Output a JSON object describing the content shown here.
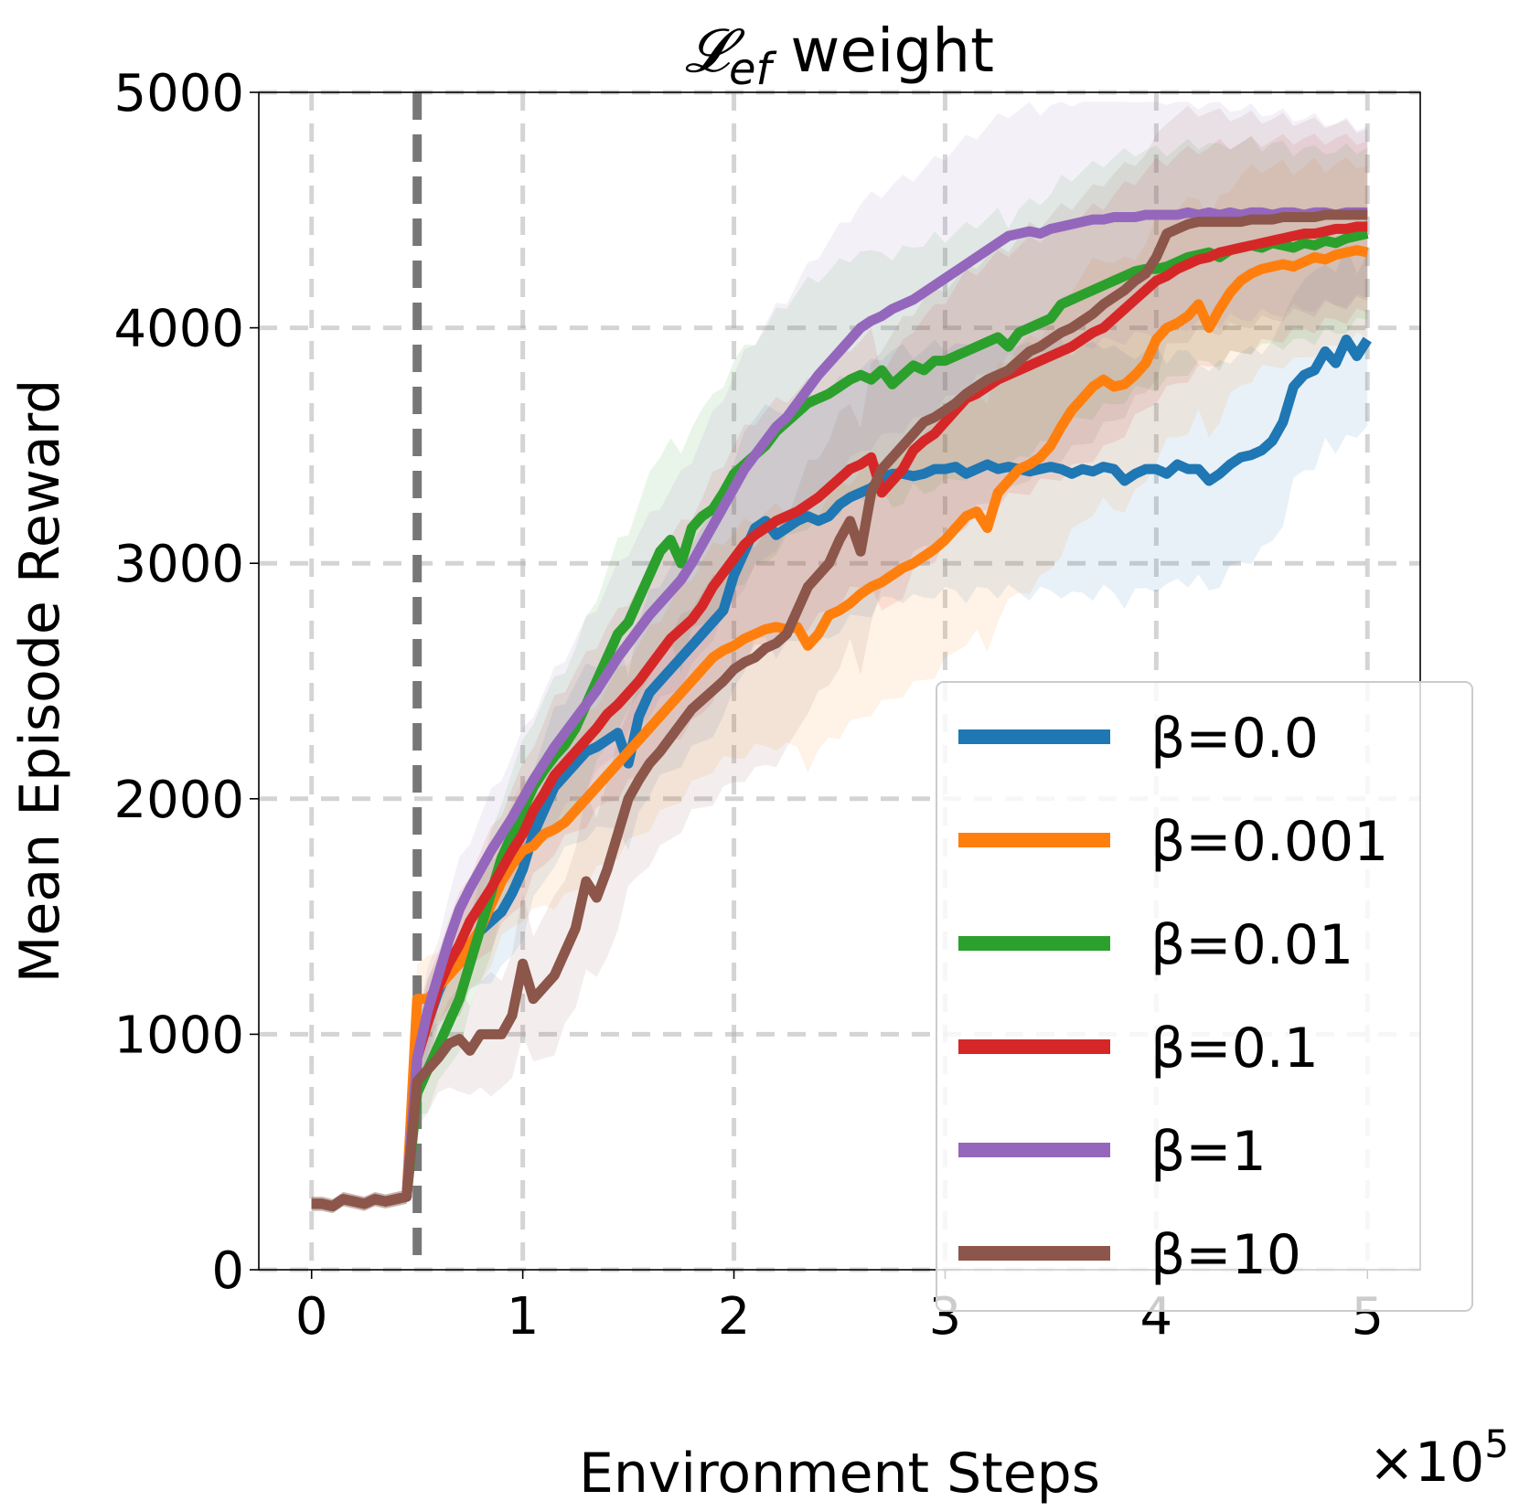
{
  "chart_data": {
    "type": "line",
    "title": "𝓛ef weight",
    "title_symbol": "𝓛",
    "title_subscript": "ef",
    "title_suffix": " weight",
    "xlabel": "Environment Steps",
    "x_multiplier_label": "×10",
    "x_multiplier_exp": "5",
    "ylabel": "Mean Episode Reward",
    "xlim": [
      -0.25,
      5.25
    ],
    "ylim": [
      0,
      5000
    ],
    "x_ticks": [
      0,
      1,
      2,
      3,
      4,
      5
    ],
    "x_tick_labels": [
      "0",
      "1",
      "2",
      "3",
      "4",
      "5"
    ],
    "y_ticks": [
      0,
      1000,
      2000,
      3000,
      4000,
      5000
    ],
    "y_tick_labels": [
      "0",
      "1000",
      "2000",
      "3000",
      "4000",
      "5000"
    ],
    "grid": true,
    "vertical_marker_x": 0.5,
    "legend_position": "lower-right",
    "x": [
      0,
      0.05,
      0.1,
      0.15,
      0.2,
      0.25,
      0.3,
      0.35,
      0.4,
      0.45,
      0.5,
      0.55,
      0.6,
      0.65,
      0.7,
      0.75,
      0.8,
      0.85,
      0.9,
      0.95,
      1.0,
      1.05,
      1.1,
      1.15,
      1.2,
      1.25,
      1.3,
      1.35,
      1.4,
      1.45,
      1.5,
      1.55,
      1.6,
      1.65,
      1.7,
      1.75,
      1.8,
      1.85,
      1.9,
      1.95,
      2.0,
      2.05,
      2.1,
      2.15,
      2.2,
      2.25,
      2.3,
      2.35,
      2.4,
      2.45,
      2.5,
      2.55,
      2.6,
      2.65,
      2.7,
      2.75,
      2.8,
      2.85,
      2.9,
      2.95,
      3.0,
      3.05,
      3.1,
      3.15,
      3.2,
      3.25,
      3.3,
      3.35,
      3.4,
      3.45,
      3.5,
      3.55,
      3.6,
      3.65,
      3.7,
      3.75,
      3.8,
      3.85,
      3.9,
      3.95,
      4.0,
      4.05,
      4.1,
      4.15,
      4.2,
      4.25,
      4.3,
      4.35,
      4.4,
      4.45,
      4.5,
      4.55,
      4.6,
      4.65,
      4.7,
      4.75,
      4.8,
      4.85,
      4.9,
      4.95,
      5.0
    ],
    "series": [
      {
        "name": "β=0.0",
        "color": "#1f77b4",
        "values": [
          280,
          280,
          270,
          300,
          290,
          280,
          300,
          290,
          300,
          310,
          950,
          1050,
          1180,
          1280,
          1300,
          1380,
          1440,
          1480,
          1520,
          1600,
          1700,
          1850,
          1950,
          2050,
          2100,
          2150,
          2200,
          2220,
          2250,
          2280,
          2150,
          2350,
          2450,
          2500,
          2550,
          2600,
          2650,
          2700,
          2750,
          2800,
          2950,
          3050,
          3150,
          3180,
          3120,
          3150,
          3180,
          3200,
          3180,
          3200,
          3250,
          3280,
          3300,
          3320,
          3360,
          3380,
          3380,
          3370,
          3380,
          3400,
          3400,
          3410,
          3380,
          3400,
          3420,
          3400,
          3410,
          3400,
          3390,
          3400,
          3410,
          3400,
          3380,
          3400,
          3390,
          3410,
          3400,
          3350,
          3380,
          3400,
          3400,
          3380,
          3420,
          3400,
          3400,
          3350,
          3380,
          3420,
          3450,
          3460,
          3480,
          3520,
          3600,
          3750,
          3800,
          3820,
          3900,
          3850,
          3950,
          3880,
          3950
        ]
      },
      {
        "name": "β=0.001",
        "color": "#ff7f0e",
        "values": [
          280,
          280,
          270,
          300,
          290,
          280,
          300,
          290,
          300,
          310,
          1150,
          1150,
          1200,
          1250,
          1300,
          1380,
          1450,
          1550,
          1650,
          1720,
          1780,
          1800,
          1850,
          1870,
          1900,
          1950,
          2000,
          2050,
          2100,
          2150,
          2200,
          2250,
          2300,
          2350,
          2400,
          2450,
          2500,
          2550,
          2600,
          2630,
          2650,
          2680,
          2700,
          2720,
          2730,
          2720,
          2730,
          2650,
          2700,
          2780,
          2800,
          2830,
          2870,
          2900,
          2920,
          2950,
          2980,
          3000,
          3030,
          3060,
          3100,
          3150,
          3200,
          3220,
          3150,
          3300,
          3350,
          3400,
          3420,
          3450,
          3500,
          3580,
          3650,
          3700,
          3750,
          3780,
          3750,
          3760,
          3800,
          3850,
          3950,
          4000,
          4020,
          4050,
          4100,
          4000,
          4080,
          4150,
          4200,
          4230,
          4250,
          4260,
          4270,
          4260,
          4280,
          4300,
          4290,
          4310,
          4320,
          4330,
          4320
        ]
      },
      {
        "name": "β=0.01",
        "color": "#2ca02c",
        "values": [
          280,
          280,
          270,
          300,
          290,
          280,
          300,
          290,
          300,
          310,
          750,
          850,
          950,
          1050,
          1150,
          1300,
          1450,
          1600,
          1750,
          1850,
          1950,
          2050,
          2120,
          2180,
          2230,
          2300,
          2400,
          2500,
          2600,
          2700,
          2750,
          2850,
          2950,
          3050,
          3100,
          3000,
          3150,
          3200,
          3230,
          3300,
          3380,
          3420,
          3460,
          3500,
          3560,
          3600,
          3640,
          3680,
          3700,
          3720,
          3750,
          3780,
          3800,
          3780,
          3820,
          3760,
          3800,
          3840,
          3820,
          3860,
          3860,
          3880,
          3900,
          3920,
          3940,
          3960,
          3920,
          3980,
          4000,
          4020,
          4040,
          4100,
          4120,
          4140,
          4160,
          4180,
          4200,
          4220,
          4240,
          4250,
          4250,
          4260,
          4280,
          4300,
          4310,
          4320,
          4300,
          4330,
          4340,
          4350,
          4340,
          4360,
          4350,
          4340,
          4360,
          4350,
          4370,
          4360,
          4380,
          4390,
          4400
        ]
      },
      {
        "name": "β=0.1",
        "color": "#d62728",
        "values": [
          280,
          280,
          270,
          300,
          290,
          280,
          300,
          290,
          300,
          310,
          900,
          1050,
          1200,
          1300,
          1380,
          1480,
          1550,
          1620,
          1700,
          1780,
          1850,
          1950,
          2020,
          2100,
          2150,
          2200,
          2250,
          2300,
          2360,
          2400,
          2450,
          2500,
          2560,
          2620,
          2680,
          2720,
          2760,
          2820,
          2900,
          2960,
          3020,
          3080,
          3120,
          3150,
          3180,
          3200,
          3220,
          3250,
          3280,
          3320,
          3360,
          3400,
          3420,
          3450,
          3300,
          3350,
          3400,
          3480,
          3520,
          3550,
          3600,
          3650,
          3700,
          3720,
          3750,
          3780,
          3800,
          3820,
          3840,
          3860,
          3880,
          3900,
          3920,
          3950,
          3980,
          4000,
          4040,
          4080,
          4120,
          4160,
          4200,
          4220,
          4250,
          4270,
          4290,
          4300,
          4320,
          4330,
          4340,
          4350,
          4360,
          4370,
          4380,
          4390,
          4400,
          4400,
          4410,
          4420,
          4420,
          4430,
          4430
        ]
      },
      {
        "name": "β=1",
        "color": "#9467bd",
        "values": [
          280,
          280,
          270,
          300,
          290,
          280,
          300,
          290,
          300,
          310,
          900,
          1100,
          1250,
          1400,
          1530,
          1620,
          1700,
          1780,
          1850,
          1920,
          2000,
          2080,
          2150,
          2220,
          2280,
          2340,
          2400,
          2460,
          2530,
          2600,
          2660,
          2720,
          2780,
          2830,
          2880,
          2930,
          3000,
          3080,
          3160,
          3240,
          3320,
          3400,
          3460,
          3520,
          3580,
          3620,
          3680,
          3740,
          3800,
          3850,
          3900,
          3950,
          4000,
          4030,
          4050,
          4080,
          4100,
          4120,
          4150,
          4180,
          4210,
          4240,
          4270,
          4300,
          4330,
          4360,
          4390,
          4400,
          4410,
          4400,
          4420,
          4430,
          4440,
          4450,
          4460,
          4460,
          4470,
          4470,
          4470,
          4480,
          4480,
          4480,
          4480,
          4490,
          4480,
          4490,
          4480,
          4490,
          4480,
          4490,
          4490,
          4480,
          4490,
          4490,
          4480,
          4490,
          4490,
          4480,
          4490,
          4490,
          4490
        ]
      },
      {
        "name": "β=10",
        "color": "#8c564b",
        "values": [
          280,
          280,
          270,
          300,
          290,
          280,
          300,
          290,
          300,
          310,
          800,
          850,
          900,
          960,
          980,
          930,
          1000,
          1000,
          1000,
          1080,
          1300,
          1150,
          1200,
          1250,
          1350,
          1450,
          1650,
          1580,
          1700,
          1850,
          2000,
          2080,
          2150,
          2200,
          2260,
          2320,
          2380,
          2420,
          2460,
          2500,
          2550,
          2580,
          2600,
          2640,
          2660,
          2700,
          2800,
          2900,
          2950,
          3000,
          3100,
          3180,
          3050,
          3300,
          3400,
          3450,
          3500,
          3550,
          3600,
          3620,
          3650,
          3680,
          3720,
          3750,
          3780,
          3800,
          3820,
          3860,
          3900,
          3920,
          3950,
          3980,
          4000,
          4030,
          4060,
          4100,
          4130,
          4160,
          4200,
          4230,
          4300,
          4400,
          4420,
          4440,
          4450,
          4450,
          4450,
          4450,
          4450,
          4460,
          4460,
          4460,
          4470,
          4470,
          4470,
          4470,
          4480,
          4480,
          4480,
          4480,
          4480
        ]
      }
    ]
  }
}
